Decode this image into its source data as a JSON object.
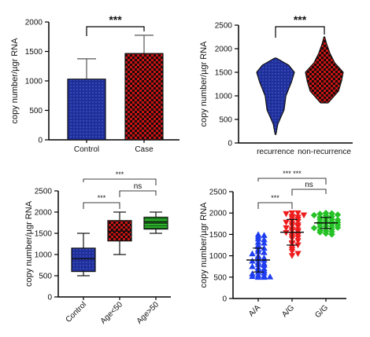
{
  "chart_data": [
    {
      "type": "bar",
      "ylabel": "copy number/µgr RNA",
      "ylim": [
        0,
        2000
      ],
      "yticks": [
        0,
        500,
        1000,
        1500,
        2000
      ],
      "categories": [
        "Control",
        "Case"
      ],
      "values": [
        1030,
        1465
      ],
      "errors_upper": [
        1375,
        1775
      ],
      "fills": [
        "#1f2f9a",
        "#c81414"
      ],
      "patterns": [
        "dots",
        "checker"
      ],
      "significance": [
        {
          "from": "Control",
          "to": "Case",
          "label": "***"
        }
      ]
    },
    {
      "type": "violin",
      "ylabel": "copy number/µgr RNA",
      "ylim": [
        0,
        2500
      ],
      "yticks": [
        0,
        500,
        1000,
        1500,
        2000,
        2500
      ],
      "categories": [
        "recurrence",
        "non-recurrence"
      ],
      "series": [
        {
          "name": "recurrence",
          "min": 180,
          "max": 1800,
          "profile": [
            [
              180,
              0.02
            ],
            [
              400,
              0.12
            ],
            [
              700,
              0.45
            ],
            [
              1000,
              0.55
            ],
            [
              1300,
              0.85
            ],
            [
              1500,
              1.0
            ],
            [
              1650,
              0.7
            ],
            [
              1800,
              0.05
            ]
          ]
        },
        {
          "name": "non-recurrence",
          "min": 850,
          "max": 2250,
          "profile": [
            [
              850,
              0.2
            ],
            [
              1100,
              0.75
            ],
            [
              1300,
              0.9
            ],
            [
              1500,
              1.0
            ],
            [
              1700,
              0.55
            ],
            [
              1900,
              0.3
            ],
            [
              2100,
              0.12
            ],
            [
              2250,
              0.02
            ]
          ]
        }
      ],
      "fills": [
        "#1f2f9a",
        "#c81414"
      ],
      "patterns": [
        "dots",
        "checker"
      ],
      "significance": [
        {
          "from": "recurrence",
          "to": "non-recurrence",
          "label": "***"
        }
      ]
    },
    {
      "type": "box",
      "ylabel": "copy number/µgr RNA",
      "ylim": [
        0,
        2500
      ],
      "yticks": [
        0,
        500,
        1000,
        1500,
        2000,
        2500
      ],
      "categories": [
        "Control",
        "Age<50",
        "Age>50"
      ],
      "series": [
        {
          "name": "Control",
          "min": 500,
          "q1": 600,
          "median": 900,
          "q3": 1150,
          "max": 1500
        },
        {
          "name": "Age<50",
          "min": 1000,
          "q1": 1320,
          "median": 1550,
          "q3": 1800,
          "max": 2000
        },
        {
          "name": "Age>50",
          "min": 1500,
          "q1": 1600,
          "median": 1760,
          "q3": 1880,
          "max": 2000
        }
      ],
      "fills": [
        "#1f2f9a",
        "#c81414",
        "#2fae2f"
      ],
      "patterns": [
        "dots",
        "checker",
        "hlines"
      ],
      "significance": [
        {
          "from": "Control",
          "to": "Age<50",
          "label": "***",
          "level": 1
        },
        {
          "from": "Age<50",
          "to": "Age>50",
          "label": "ns",
          "level": 2
        },
        {
          "from": "Control",
          "to": "Age>50",
          "label": "***",
          "level": 3
        }
      ]
    },
    {
      "type": "scatter",
      "ylabel": "copy number/µgr RNA",
      "ylim": [
        0,
        2500
      ],
      "yticks": [
        0,
        500,
        1000,
        1500,
        2000,
        2500
      ],
      "categories": [
        "A/A",
        "A/G",
        "G/G"
      ],
      "series": [
        {
          "name": "A/A",
          "marker": "triangle",
          "color": "#1e3df0",
          "mean": 900,
          "sd": 280,
          "points": [
            1500,
            1480,
            1450,
            1400,
            1380,
            1320,
            1300,
            1250,
            1220,
            1180,
            1150,
            1100,
            1080,
            1050,
            1000,
            980,
            950,
            920,
            900,
            880,
            850,
            820,
            800,
            780,
            750,
            720,
            700,
            680,
            650,
            620,
            600,
            580,
            550,
            530,
            520,
            510,
            500,
            500
          ]
        },
        {
          "name": "A/G",
          "marker": "inverted-triangle",
          "color": "#ee1c1c",
          "mean": 1550,
          "sd": 300,
          "points": [
            2000,
            2000,
            1980,
            1950,
            1920,
            1900,
            1880,
            1850,
            1820,
            1800,
            1780,
            1750,
            1720,
            1700,
            1680,
            1650,
            1620,
            1600,
            1580,
            1560,
            1540,
            1500,
            1480,
            1450,
            1420,
            1400,
            1350,
            1300,
            1280,
            1250,
            1200,
            1150,
            1100,
            1050,
            1000
          ]
        },
        {
          "name": "G/G",
          "marker": "diamond",
          "color": "#25c225",
          "mean": 1770,
          "sd": 130,
          "points": [
            2000,
            1990,
            1980,
            1960,
            1950,
            1940,
            1920,
            1900,
            1880,
            1860,
            1850,
            1840,
            1820,
            1800,
            1790,
            1780,
            1760,
            1750,
            1740,
            1720,
            1700,
            1690,
            1680,
            1660,
            1650,
            1640,
            1620,
            1600,
            1580,
            1560,
            1550,
            1520,
            1500
          ]
        }
      ],
      "significance": [
        {
          "from": "A/A",
          "to": "A/G",
          "label": "***",
          "level": 1
        },
        {
          "from": "A/G",
          "to": "G/G",
          "label": "ns",
          "level": 2
        },
        {
          "from": "A/A",
          "to": "G/G",
          "label": "*** ***",
          "level": 3
        }
      ]
    }
  ]
}
